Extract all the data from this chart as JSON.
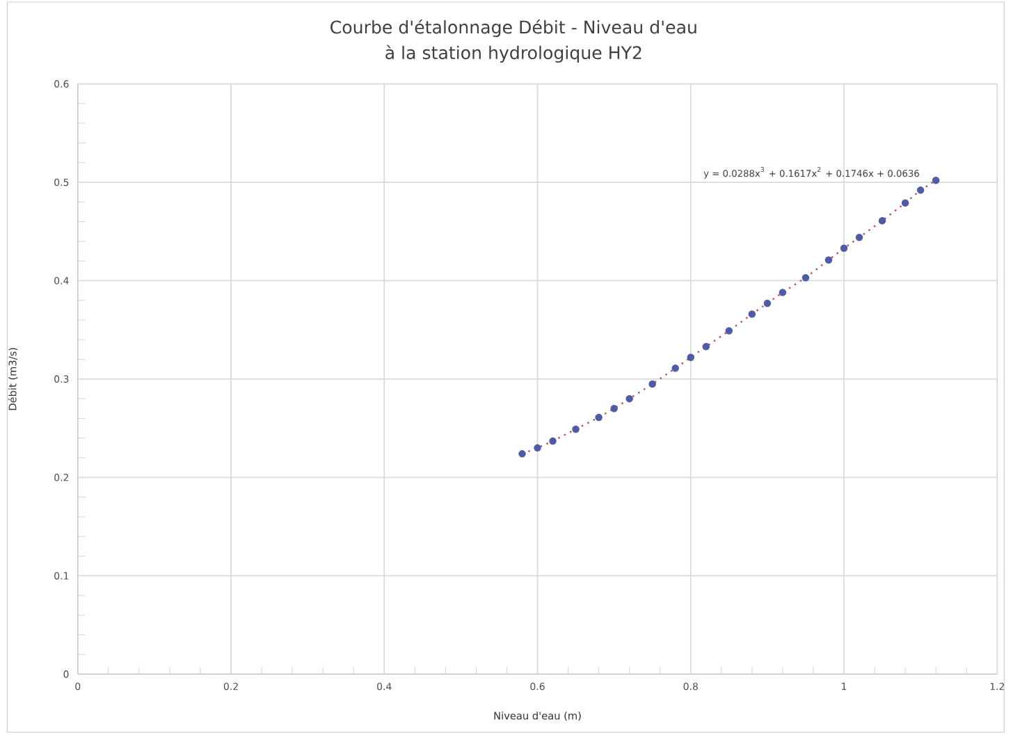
{
  "chart_data": {
    "type": "scatter",
    "title": "Courbe d'étalonnage Débit - Niveau d'eau",
    "subtitle": "à la station hydrologique HY2",
    "xlabel": "Niveau d'eau (m)",
    "ylabel": "Débit (m3/s)",
    "xlim": [
      0,
      1.2
    ],
    "ylim": [
      0,
      0.6
    ],
    "xticks": [
      0,
      0.2,
      0.4,
      0.6,
      0.8,
      1,
      1.2
    ],
    "yticks": [
      0,
      0.1,
      0.2,
      0.3,
      0.4,
      0.5,
      0.6
    ],
    "grid": true,
    "marker": "circle",
    "x": [
      0.58,
      0.6,
      0.62,
      0.65,
      0.68,
      0.7,
      0.72,
      0.75,
      0.78,
      0.8,
      0.82,
      0.85,
      0.88,
      0.9,
      0.92,
      0.95,
      0.98,
      1.0,
      1.02,
      1.05,
      1.08,
      1.1,
      1.12
    ],
    "series": [
      {
        "color": "#4f5ba6",
        "values": [
          0.224,
          0.23,
          0.237,
          0.249,
          0.261,
          0.27,
          0.28,
          0.295,
          0.311,
          0.322,
          0.333,
          0.349,
          0.366,
          0.377,
          0.388,
          0.403,
          0.421,
          0.433,
          0.444,
          0.461,
          0.479,
          0.492,
          0.502
        ]
      },
      {
        "type": "line",
        "color": "#c0504d",
        "line_style": "dotted",
        "marker": "none",
        "values": [
          0.224,
          0.23,
          0.237,
          0.249,
          0.261,
          0.27,
          0.28,
          0.295,
          0.311,
          0.322,
          0.333,
          0.349,
          0.366,
          0.377,
          0.388,
          0.403,
          0.421,
          0.433,
          0.444,
          0.461,
          0.479,
          0.492,
          0.502
        ]
      }
    ],
    "annotations": [
      "y = 0.0288x$^{3}$ + 0.1617x$^{2}$ + 0.1746x + 0.0636"
    ]
  }
}
